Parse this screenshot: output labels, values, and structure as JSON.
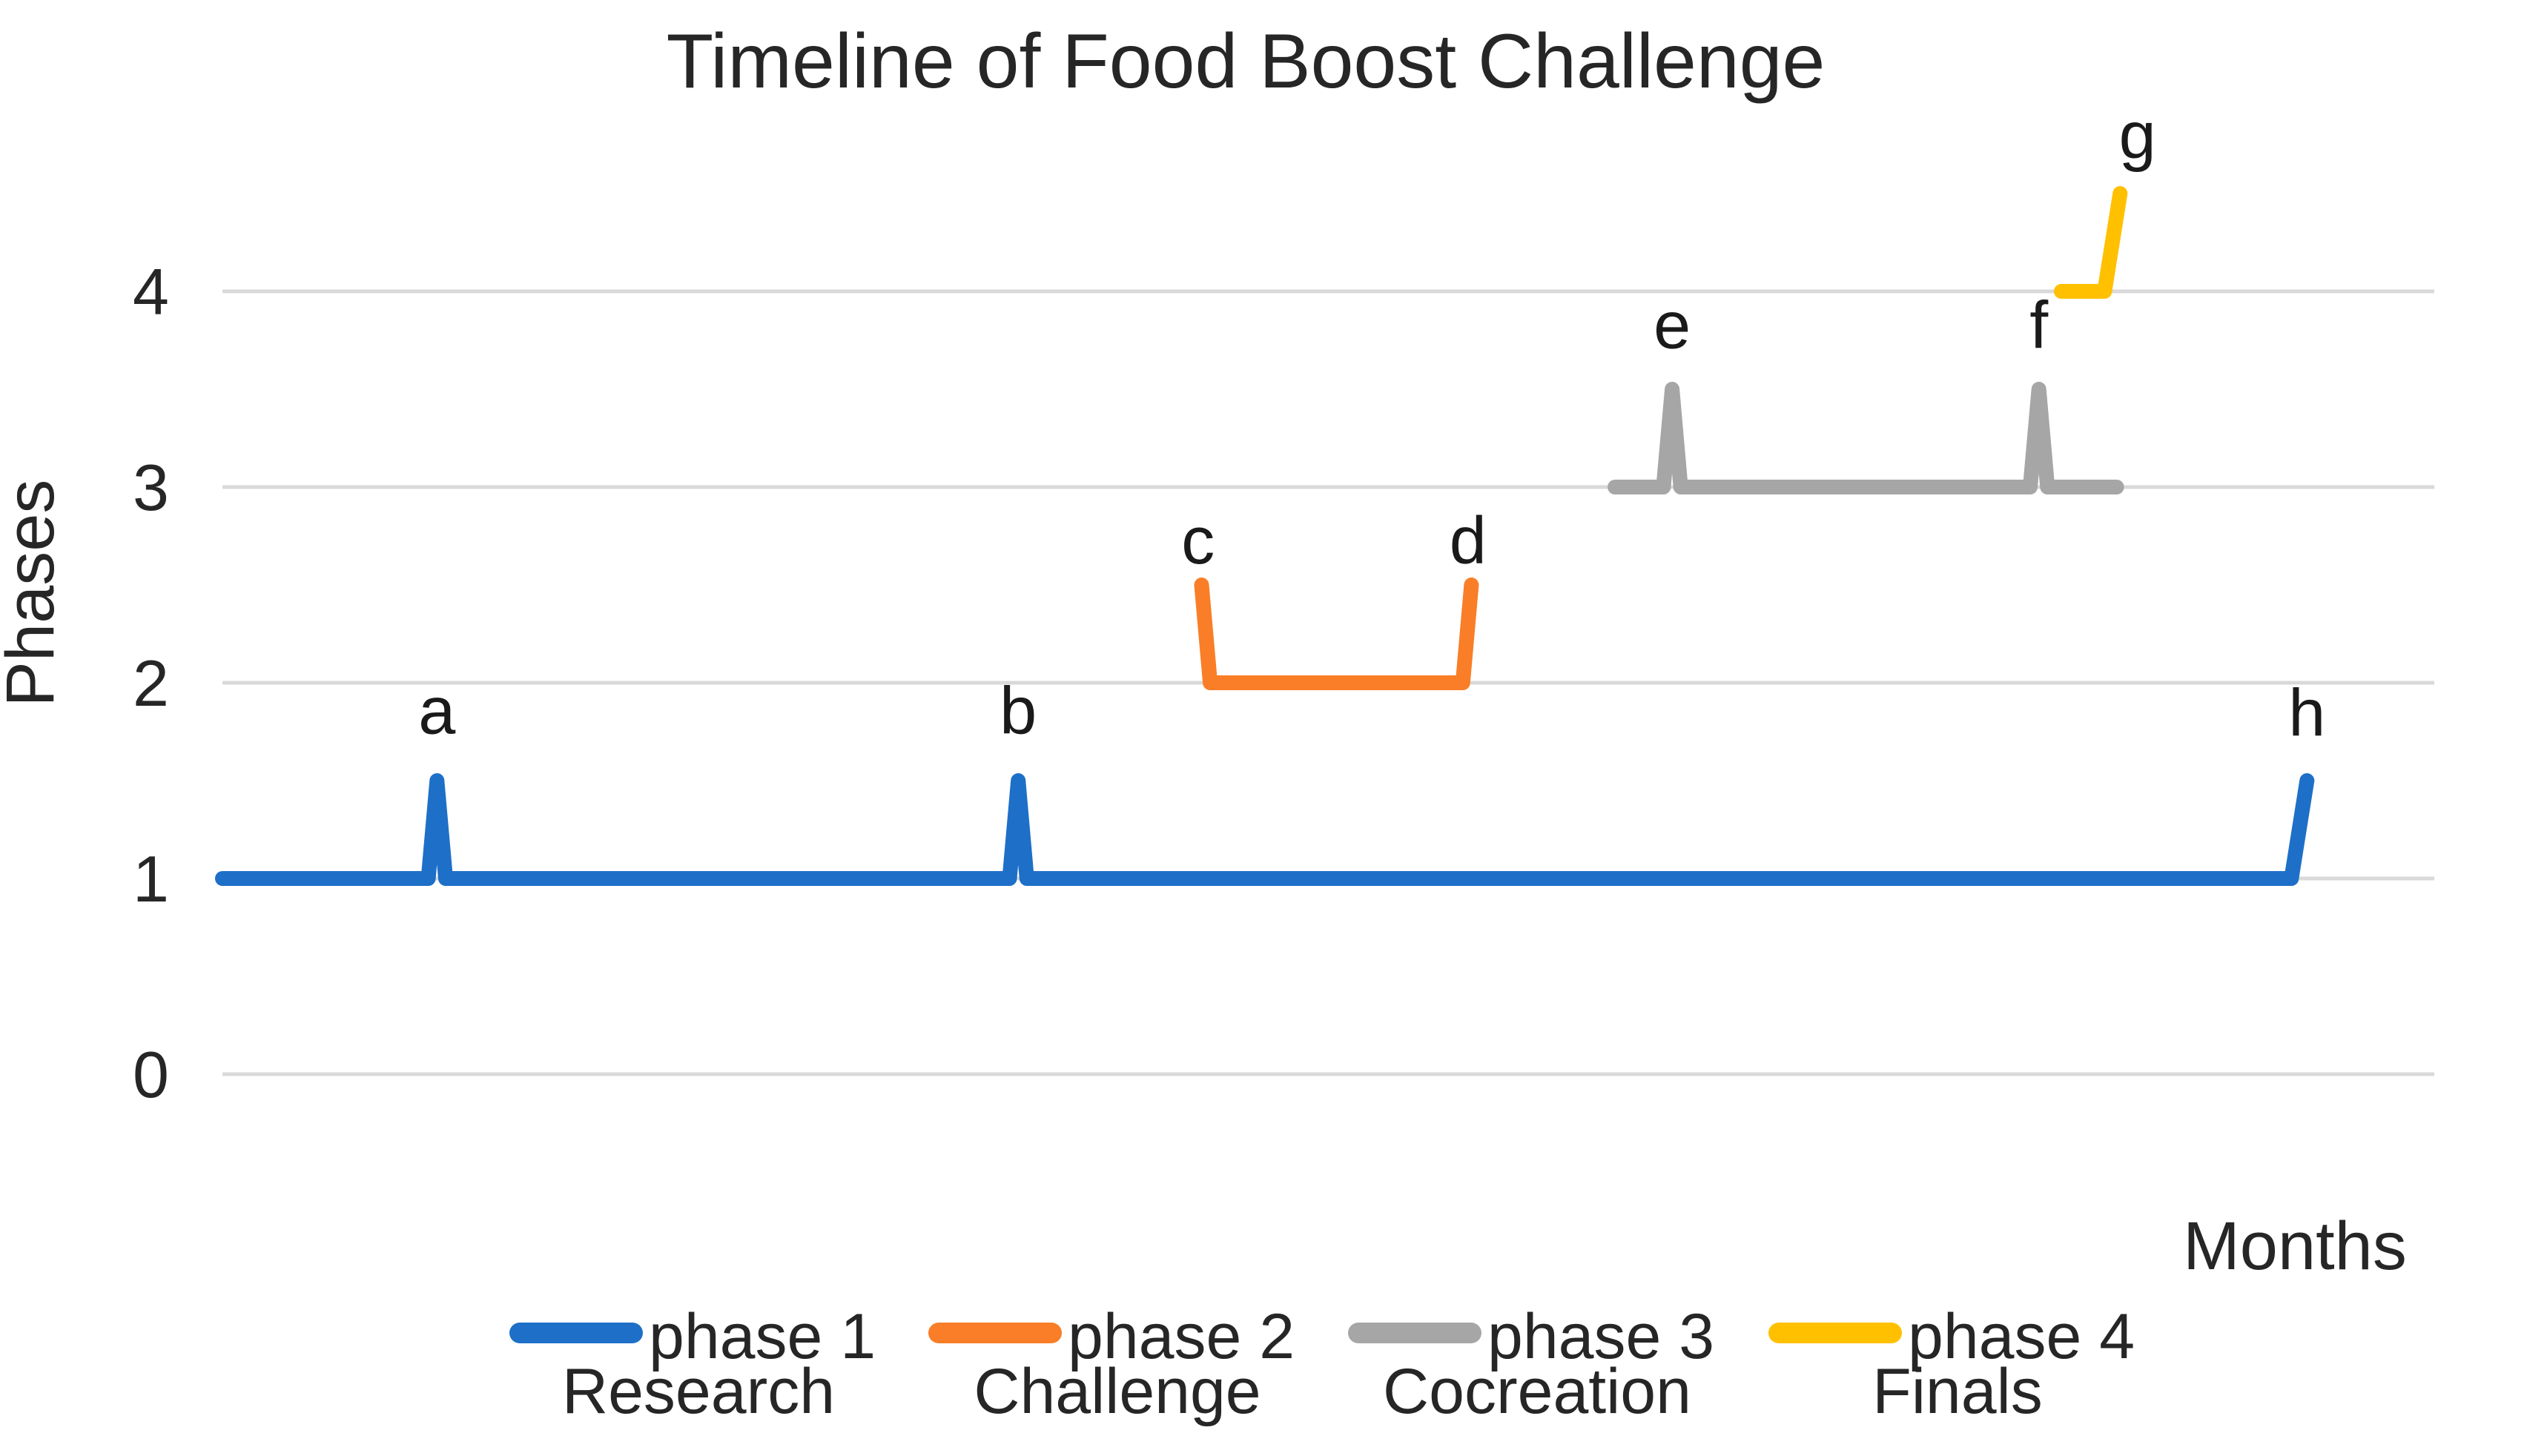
{
  "chart_data": {
    "type": "line",
    "title": "Timeline of Food Boost Challenge",
    "xlabel": "Months",
    "ylabel": "Phases",
    "y_ticks": [
      0,
      1,
      2,
      3,
      4
    ],
    "x_axis": {
      "unit": "months",
      "visible_range": [
        0,
        12.8
      ],
      "tick_labels_shown": false
    },
    "grid": "horizontal",
    "legend_position": "bottom",
    "colors": {
      "gridline": "#D9D9D9",
      "text": "#262626",
      "background": "#FFFFFF"
    },
    "series": [
      {
        "name": "phase 1",
        "sub_label": "Research",
        "color": "#1E6FC8",
        "phase_level": 1,
        "span_months": [
          0,
          12
        ],
        "event_markers": {
          "a": 1.2,
          "b": 4.6,
          "h": 12.0
        },
        "points": [
          [
            0,
            1
          ],
          [
            1.19,
            1
          ],
          [
            1.24,
            1.5
          ],
          [
            1.29,
            1
          ],
          [
            4.55,
            1
          ],
          [
            4.6,
            1.5
          ],
          [
            4.65,
            1
          ],
          [
            11.96,
            1
          ],
          [
            12.05,
            1.5
          ]
        ]
      },
      {
        "name": "phase 2",
        "sub_label": "Challenge",
        "color": "#F97E27",
        "phase_level": 2,
        "span_months": [
          5.7,
          7.2
        ],
        "event_markers": {
          "c": 5.7,
          "d": 7.2
        },
        "points": [
          [
            5.66,
            2.5
          ],
          [
            5.71,
            2
          ],
          [
            7.17,
            2
          ],
          [
            7.22,
            2.5
          ]
        ]
      },
      {
        "name": "phase 3",
        "sub_label": "Cocreation",
        "color": "#A6A6A6",
        "phase_level": 3,
        "span_months": [
          8.0,
          11.0
        ],
        "event_markers": {
          "e": 8.4,
          "f": 10.5
        },
        "points": [
          [
            8.05,
            3
          ],
          [
            8.33,
            3
          ],
          [
            8.38,
            3.5
          ],
          [
            8.43,
            3
          ],
          [
            10.45,
            3
          ],
          [
            10.5,
            3.5
          ],
          [
            10.55,
            3
          ],
          [
            10.95,
            3
          ]
        ]
      },
      {
        "name": "phase 4",
        "sub_label": "Finals",
        "color": "#FFC000",
        "phase_level": 4,
        "span_months": [
          10.6,
          11.0
        ],
        "event_markers": {
          "g": 11.0
        },
        "points": [
          [
            10.63,
            4
          ],
          [
            10.88,
            4
          ],
          [
            10.97,
            4.5
          ]
        ]
      }
    ],
    "point_labels": [
      {
        "text": "a",
        "month": 1.24,
        "baseline_phase": 1.74
      },
      {
        "text": "b",
        "month": 4.6,
        "baseline_phase": 1.74
      },
      {
        "text": "c",
        "month": 5.64,
        "baseline_phase": 2.61
      },
      {
        "text": "d",
        "month": 7.2,
        "baseline_phase": 2.61
      },
      {
        "text": "e",
        "month": 8.38,
        "baseline_phase": 3.71
      },
      {
        "text": "f",
        "month": 10.5,
        "baseline_phase": 3.71
      },
      {
        "text": "g",
        "month": 11.07,
        "baseline_phase": 4.68
      },
      {
        "text": "h",
        "month": 12.05,
        "baseline_phase": 1.73
      }
    ]
  }
}
